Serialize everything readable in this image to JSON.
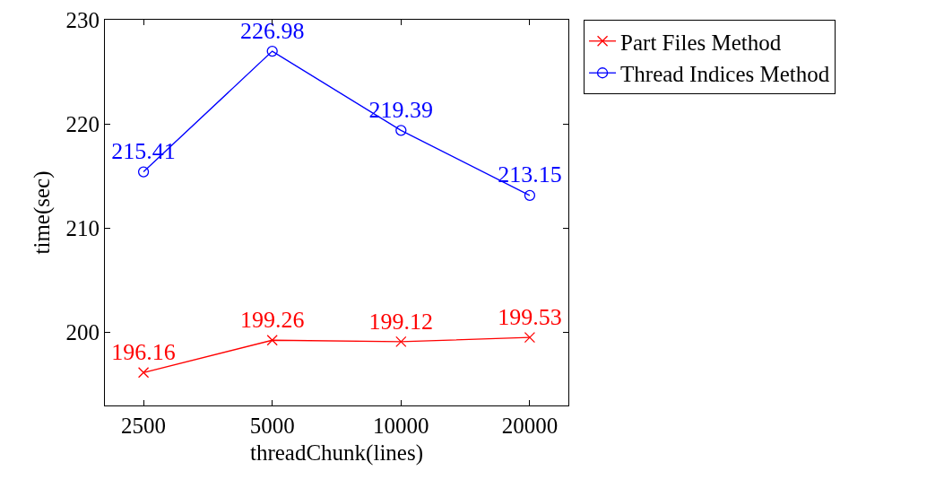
{
  "chart_data": {
    "type": "line",
    "xlabel": "threadChunk(lines)",
    "ylabel": "time(sec)",
    "categories": [
      "2500",
      "5000",
      "10000",
      "20000"
    ],
    "series": [
      {
        "name": "Part Files Method",
        "color": "#ff0000",
        "marker": "cross",
        "values": [
          196.16,
          199.26,
          199.12,
          199.53
        ]
      },
      {
        "name": "Thread Indices Method",
        "color": "#0000ff",
        "marker": "circle",
        "values": [
          215.41,
          226.98,
          219.39,
          213.15
        ]
      }
    ],
    "ylim": [
      193,
      230
    ],
    "yticks": [
      200,
      210,
      220,
      230
    ],
    "data_labels": true,
    "grid": false,
    "legend": "top right",
    "line_style": "solid"
  }
}
